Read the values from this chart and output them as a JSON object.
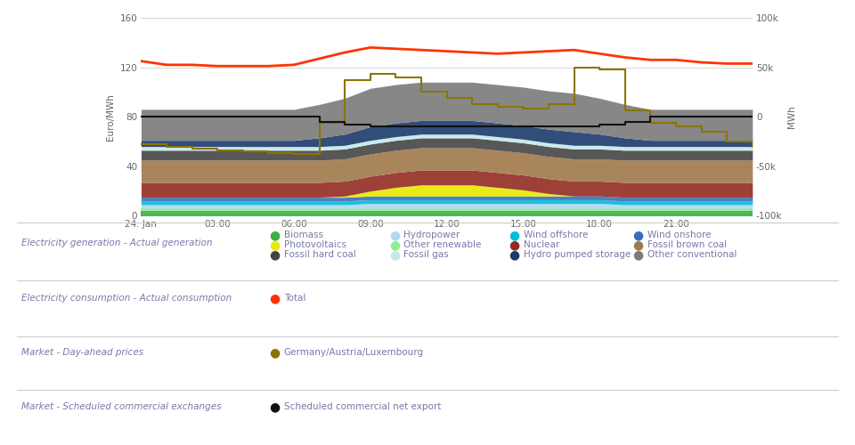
{
  "xlabel_left": "Euro/MWh",
  "xlabel_right": "MWh",
  "x_ticks": [
    "24. Jan",
    "03:00",
    "06:00",
    "09:00",
    "12:00",
    "15:00",
    "18:00",
    "21:00",
    ""
  ],
  "x_tick_positions": [
    0,
    3,
    6,
    9,
    12,
    15,
    18,
    21,
    24
  ],
  "ylim_left": [
    0,
    160
  ],
  "ylim_right": [
    -100000,
    100000
  ],
  "yticks_left": [
    0,
    40,
    80,
    120,
    160
  ],
  "yticks_right": [
    -100000,
    -50000,
    0,
    50000,
    100000
  ],
  "yticks_right_labels": [
    "-100k",
    "-50k",
    "0",
    "50k",
    "100k"
  ],
  "grid_color": "#d0d0d0",
  "background_color": "#ffffff",
  "hours": [
    0,
    1,
    2,
    3,
    4,
    5,
    6,
    7,
    8,
    9,
    10,
    11,
    12,
    13,
    14,
    15,
    16,
    17,
    18,
    19,
    20,
    21,
    22,
    23,
    24
  ],
  "stacks": {
    "Biomass": [
      4,
      4,
      4,
      4,
      4,
      4,
      4,
      4,
      4,
      4,
      4,
      4,
      4,
      4,
      4,
      4,
      4,
      4,
      4,
      4,
      4,
      4,
      4,
      4,
      4
    ],
    "Other renewable": [
      2,
      2,
      2,
      2,
      2,
      2,
      2,
      2,
      2,
      2,
      2,
      2,
      2,
      2,
      2,
      2,
      2,
      2,
      2,
      2,
      2,
      2,
      2,
      2,
      2
    ],
    "Hydropower": [
      3,
      3,
      3,
      3,
      3,
      3,
      3,
      3,
      3,
      4,
      4,
      4,
      4,
      4,
      4,
      4,
      4,
      4,
      4,
      3,
      3,
      3,
      3,
      3,
      3
    ],
    "Wind offshore": [
      3,
      3,
      3,
      3,
      3,
      3,
      3,
      3,
      3,
      3,
      3,
      3,
      3,
      3,
      3,
      3,
      3,
      3,
      3,
      3,
      3,
      3,
      3,
      3,
      3
    ],
    "Wind onshore": [
      3,
      3,
      3,
      3,
      3,
      3,
      3,
      3,
      3,
      3,
      3,
      3,
      3,
      3,
      3,
      3,
      3,
      3,
      3,
      3,
      3,
      3,
      3,
      3,
      3
    ],
    "Photovoltaics": [
      0,
      0,
      0,
      0,
      0,
      0,
      0,
      0,
      1,
      4,
      7,
      9,
      9,
      9,
      7,
      5,
      2,
      0,
      0,
      0,
      0,
      0,
      0,
      0,
      0
    ],
    "Nuclear": [
      12,
      12,
      12,
      12,
      12,
      12,
      12,
      12,
      12,
      12,
      12,
      12,
      12,
      12,
      12,
      12,
      12,
      12,
      12,
      12,
      12,
      12,
      12,
      12,
      12
    ],
    "Fossil brown coal": [
      18,
      18,
      18,
      18,
      18,
      18,
      18,
      18,
      18,
      18,
      18,
      18,
      18,
      18,
      18,
      18,
      18,
      18,
      18,
      18,
      18,
      18,
      18,
      18,
      18
    ],
    "Fossil hard coal": [
      8,
      8,
      8,
      8,
      8,
      8,
      8,
      8,
      8,
      8,
      8,
      8,
      8,
      8,
      8,
      8,
      8,
      8,
      8,
      8,
      8,
      8,
      8,
      8,
      8
    ],
    "Fossil gas": [
      3,
      3,
      3,
      3,
      3,
      3,
      3,
      3,
      3,
      3,
      3,
      3,
      3,
      3,
      3,
      3,
      3,
      3,
      3,
      3,
      3,
      3,
      3,
      3,
      3
    ],
    "Hydro pumped storage": [
      5,
      5,
      5,
      5,
      5,
      5,
      5,
      7,
      9,
      11,
      11,
      11,
      11,
      11,
      11,
      11,
      11,
      11,
      9,
      7,
      5,
      5,
      5,
      5,
      5
    ],
    "Other conventional": [
      25,
      25,
      25,
      25,
      25,
      25,
      25,
      27,
      29,
      31,
      31,
      31,
      31,
      31,
      31,
      31,
      31,
      31,
      29,
      27,
      25,
      25,
      25,
      25,
      25
    ]
  },
  "stack_colors": {
    "Biomass": "#3cb043",
    "Other renewable": "#90ee90",
    "Hydropower": "#b0d8f0",
    "Wind offshore": "#00bcd4",
    "Wind onshore": "#3a6fbf",
    "Photovoltaics": "#e8e800",
    "Nuclear": "#922b21",
    "Fossil brown coal": "#a0784a",
    "Fossil hard coal": "#454545",
    "Fossil gas": "#c5e8ea",
    "Hydro pumped storage": "#1a3a6a",
    "Other conventional": "#7a7a7a"
  },
  "total_consumption": [
    125,
    122,
    122,
    121,
    121,
    121,
    122,
    127,
    132,
    136,
    135,
    134,
    133,
    132,
    131,
    132,
    133,
    134,
    131,
    128,
    126,
    126,
    124,
    123,
    123
  ],
  "total_color": "#ff3300",
  "day_ahead_price": [
    58,
    56,
    54,
    53,
    52,
    51,
    50,
    75,
    110,
    115,
    112,
    100,
    95,
    90,
    88,
    87,
    90,
    120,
    118,
    85,
    75,
    72,
    68,
    60,
    56
  ],
  "day_ahead_color": "#8B7500",
  "net_export_color": "#111111",
  "net_export": [
    0,
    0,
    0,
    0,
    0,
    0,
    0,
    -5000,
    -8000,
    -10000,
    -10000,
    -10000,
    -10000,
    -10000,
    -10000,
    -10000,
    -10000,
    -10000,
    -8000,
    -5000,
    0,
    0,
    0,
    0,
    0
  ],
  "legend_categories": [
    {
      "label": "Biomass",
      "color": "#3cb043"
    },
    {
      "label": "Hydropower",
      "color": "#b0d8f0"
    },
    {
      "label": "Wind offshore",
      "color": "#00bcd4"
    },
    {
      "label": "Wind onshore",
      "color": "#3a6fbf"
    },
    {
      "label": "Photovoltaics",
      "color": "#e8e800"
    },
    {
      "label": "Other renewable",
      "color": "#90ee90"
    },
    {
      "label": "Nuclear",
      "color": "#922b21"
    },
    {
      "label": "Fossil brown coal",
      "color": "#a0784a"
    },
    {
      "label": "Fossil hard coal",
      "color": "#454545"
    },
    {
      "label": "Fossil gas",
      "color": "#c5e8ea"
    },
    {
      "label": "Hydro pumped storage",
      "color": "#1a3a6a"
    },
    {
      "label": "Other conventional",
      "color": "#7a7a7a"
    }
  ],
  "section_label_color": "#7878aa",
  "divider_color": "#cccccc"
}
